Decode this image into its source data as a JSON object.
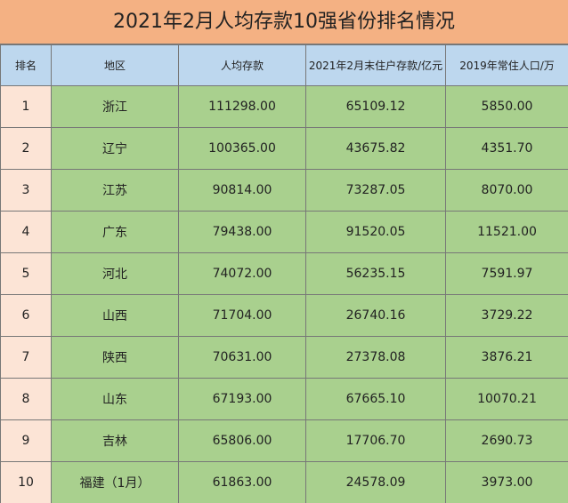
{
  "title": "2021年2月人均存款10强省份排名情况",
  "table": {
    "header": [
      "排名",
      "地区",
      "人均存款",
      "2021年2月末住户存款/亿元",
      "2019年常住人口/万"
    ],
    "rows": [
      [
        "1",
        "浙江",
        "111298.00",
        "65109.12",
        "5850.00"
      ],
      [
        "2",
        "辽宁",
        "100365.00",
        "43675.82",
        "4351.70"
      ],
      [
        "3",
        "江苏",
        "90814.00",
        "73287.05",
        "8070.00"
      ],
      [
        "4",
        "广东",
        "79438.00",
        "91520.05",
        "11521.00"
      ],
      [
        "5",
        "河北",
        "74072.00",
        "56235.15",
        "7591.97"
      ],
      [
        "6",
        "山西",
        "71704.00",
        "26740.16",
        "3729.22"
      ],
      [
        "7",
        "陕西",
        "70631.00",
        "27378.08",
        "3876.21"
      ],
      [
        "8",
        "山东",
        "67193.00",
        "67665.10",
        "10070.21"
      ],
      [
        "9",
        "吉林",
        "65806.00",
        "17706.70",
        "2690.73"
      ],
      [
        "10",
        "福建（1月）",
        "61863.00",
        "24578.09",
        "3973.00"
      ]
    ]
  }
}
